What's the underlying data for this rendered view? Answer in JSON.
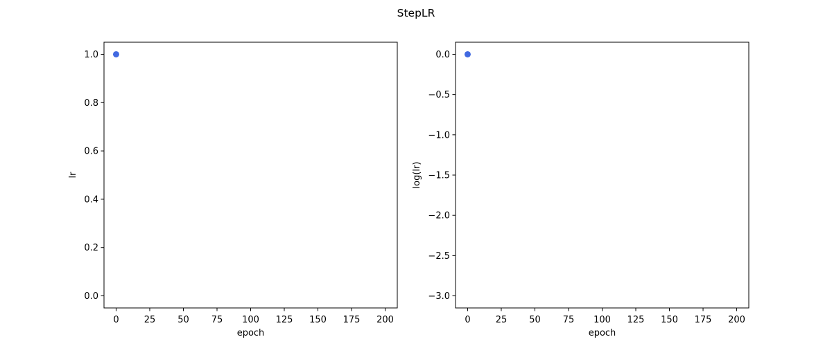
{
  "figure": {
    "suptitle": "StepLR"
  },
  "chart_data": [
    {
      "type": "scatter",
      "xlabel": "epoch",
      "ylabel": "lr",
      "xlim": [
        -9,
        209
      ],
      "ylim": [
        -0.05,
        1.05
      ],
      "xticks": [
        0,
        25,
        50,
        75,
        100,
        125,
        150,
        175,
        200
      ],
      "xtick_labels": [
        "0",
        "25",
        "50",
        "75",
        "100",
        "125",
        "150",
        "175",
        "200"
      ],
      "yticks": [
        0.0,
        0.2,
        0.4,
        0.6,
        0.8,
        1.0
      ],
      "ytick_labels": [
        "0.0",
        "0.2",
        "0.4",
        "0.6",
        "0.8",
        "1.0"
      ],
      "grid": false,
      "series": [
        {
          "color": "#4169e1",
          "points": [
            [
              0,
              1.0
            ]
          ]
        }
      ]
    },
    {
      "type": "scatter",
      "xlabel": "epoch",
      "ylabel": "log(lr)",
      "xlim": [
        -9,
        209
      ],
      "ylim": [
        -3.15,
        0.15
      ],
      "xticks": [
        0,
        25,
        50,
        75,
        100,
        125,
        150,
        175,
        200
      ],
      "xtick_labels": [
        "0",
        "25",
        "50",
        "75",
        "100",
        "125",
        "150",
        "175",
        "200"
      ],
      "yticks": [
        -3.0,
        -2.5,
        -2.0,
        -1.5,
        -1.0,
        -0.5,
        0.0
      ],
      "ytick_labels": [
        "−3.0",
        "−2.5",
        "−2.0",
        "−1.5",
        "−1.0",
        "−0.5",
        "0.0"
      ],
      "grid": false,
      "series": [
        {
          "color": "#4169e1",
          "points": [
            [
              0,
              0.0
            ]
          ]
        }
      ]
    }
  ]
}
